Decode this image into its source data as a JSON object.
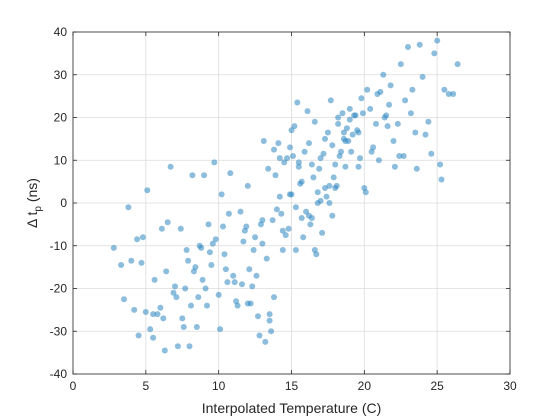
{
  "chart_data": {
    "type": "scatter",
    "title": "",
    "xlabel": "Interpolated Temperature (C)",
    "ylabel_base": "Δ t",
    "ylabel_sub": "p",
    "ylabel_unit": " (ns)",
    "xlim": [
      0,
      30
    ],
    "ylim": [
      -40,
      40
    ],
    "xticks": [
      0,
      5,
      10,
      15,
      20,
      25,
      30
    ],
    "yticks": [
      -40,
      -30,
      -20,
      -10,
      0,
      10,
      20,
      30,
      40
    ],
    "grid": true,
    "legend": false,
    "marker_color": "#2E86C1",
    "x": [
      2.8,
      3.3,
      3.5,
      3.8,
      4.0,
      4.2,
      4.4,
      4.5,
      4.7,
      4.8,
      5.0,
      5.1,
      5.3,
      5.5,
      5.6,
      5.8,
      6.0,
      6.1,
      6.3,
      6.5,
      6.7,
      6.9,
      7.0,
      7.2,
      7.4,
      7.5,
      7.7,
      7.8,
      7.9,
      8.0,
      8.2,
      8.3,
      8.4,
      8.6,
      8.7,
      8.9,
      9.0,
      9.2,
      9.4,
      9.5,
      9.7,
      9.8,
      10.0,
      10.2,
      10.3,
      10.5,
      10.6,
      10.8,
      11.0,
      11.2,
      11.3,
      11.5,
      11.7,
      11.8,
      12.0,
      12.1,
      12.3,
      12.4,
      12.6,
      12.7,
      12.9,
      13.0,
      13.1,
      13.3,
      13.4,
      13.5,
      13.7,
      13.8,
      13.9,
      14.0,
      14.1,
      14.3,
      14.4,
      14.5,
      14.7,
      14.8,
      14.9,
      15.0,
      15.2,
      15.3,
      15.4,
      15.5,
      15.7,
      15.8,
      15.9,
      16.0,
      16.1,
      16.2,
      16.4,
      16.5,
      16.6,
      16.7,
      16.8,
      17.0,
      17.1,
      17.2,
      17.3,
      17.5,
      17.6,
      17.7,
      17.8,
      18.0,
      18.1,
      18.2,
      18.3,
      18.5,
      18.6,
      18.7,
      18.8,
      19.0,
      19.1,
      19.2,
      19.4,
      19.5,
      19.7,
      19.8,
      20.0,
      20.2,
      20.4,
      20.6,
      20.8,
      21.0,
      21.3,
      21.5,
      21.8,
      22.0,
      22.3,
      22.5,
      22.8,
      23.0,
      23.3,
      23.5,
      23.8,
      24.0,
      24.4,
      24.8,
      25.0,
      25.2,
      25.5,
      25.8,
      26.1,
      26.4,
      5.5,
      6.2,
      7.1,
      8.5,
      9.1,
      10.4,
      11.1,
      12.2,
      12.8,
      13.6,
      14.2,
      14.6,
      15.1,
      15.6,
      16.3,
      16.9,
      17.4,
      17.9,
      18.4,
      18.9,
      19.3,
      19.9,
      20.5,
      21.1,
      21.7,
      22.1,
      22.7,
      23.2,
      24.2,
      25.3,
      7.6,
      8.1,
      9.3,
      10.1,
      11.6,
      12.5,
      13.2,
      14.4,
      15.7,
      16.6,
      17.6,
      18.6,
      19.6,
      20.9,
      23.6,
      6.4,
      8.8,
      10.7,
      12.0,
      13.8,
      15.0,
      16.4,
      17.0,
      18.0,
      19.0,
      22.4,
      24.6,
      9.6,
      11.9,
      13.5,
      15.3,
      16.8,
      18.2,
      20.1,
      14.9,
      16.2,
      17.3,
      18.7,
      21.4,
      13.0,
      15.5,
      17.8,
      19.6,
      21.6,
      14.2
    ],
    "y": [
      -10.5,
      -14.5,
      -22.5,
      -1.0,
      -13.5,
      -25.0,
      -8.5,
      -31.0,
      -14.0,
      -8.0,
      -25.5,
      3.0,
      -29.5,
      -26.0,
      -18.0,
      -26.0,
      -24.5,
      -6.0,
      -34.5,
      -4.5,
      8.5,
      -21.0,
      -19.5,
      -33.5,
      -6.0,
      -27.0,
      -20.0,
      -11.0,
      -13.5,
      -33.5,
      6.5,
      -16.0,
      -15.0,
      -22.0,
      -10.0,
      -18.0,
      6.5,
      -24.0,
      -11.5,
      -14.5,
      9.5,
      -8.5,
      -21.5,
      2.0,
      -5.5,
      -15.5,
      -18.5,
      7.0,
      -17.0,
      -23.0,
      -24.0,
      -2.0,
      -9.0,
      -6.5,
      4.0,
      -15.5,
      -19.5,
      -11.0,
      -17.0,
      -26.5,
      -5.0,
      -9.5,
      14.5,
      -13.0,
      8.0,
      -26.0,
      -4.0,
      -22.0,
      6.5,
      -1.5,
      14.0,
      -2.5,
      -11.0,
      9.5,
      10.5,
      -6.0,
      2.0,
      17.0,
      18.0,
      -11.0,
      23.5,
      9.5,
      5.0,
      -8.0,
      12.0,
      -2.0,
      21.5,
      14.0,
      -3.5,
      6.0,
      19.0,
      -12.0,
      2.5,
      10.5,
      -7.0,
      11.5,
      15.0,
      16.5,
      0.0,
      24.0,
      13.5,
      9.0,
      4.0,
      18.5,
      11.0,
      21.0,
      15.0,
      8.5,
      17.5,
      22.0,
      12.0,
      16.0,
      20.5,
      17.0,
      10.5,
      24.5,
      3.5,
      26.5,
      22.0,
      13.0,
      18.5,
      10.0,
      30.0,
      20.5,
      27.5,
      14.5,
      18.5,
      32.5,
      24.0,
      36.5,
      26.5,
      16.5,
      37.0,
      29.5,
      19.0,
      35.0,
      38.0,
      9.0,
      26.5,
      25.5,
      25.5,
      32.5,
      -31.5,
      -27.0,
      -22.0,
      -29.0,
      -20.0,
      -12.0,
      -18.5,
      -23.5,
      -31.0,
      -30.0,
      1.5,
      -7.5,
      11.0,
      4.5,
      -5.0,
      8.0,
      1.5,
      6.0,
      12.0,
      14.5,
      20.5,
      21.0,
      12.0,
      26.0,
      23.0,
      8.5,
      11.0,
      21.0,
      16.0,
      5.5,
      -29.0,
      -24.0,
      -5.0,
      -29.5,
      -19.0,
      -8.0,
      -32.5,
      -6.5,
      -3.5,
      -11.0,
      4.0,
      16.5,
      16.5,
      25.5,
      8.0,
      -16.0,
      -10.5,
      -2.5,
      -23.5,
      12.5,
      2.0,
      9.0,
      0.5,
      3.5,
      19.5,
      11.0,
      11.5,
      -9.5,
      -5.5,
      -27.5,
      -1.0,
      0.0,
      20.0,
      2.5,
      13.0,
      -3.0,
      3.5,
      14.5,
      20.0,
      -4.0,
      8.5,
      -3.0,
      8.5,
      18.0,
      10.5
    ]
  }
}
